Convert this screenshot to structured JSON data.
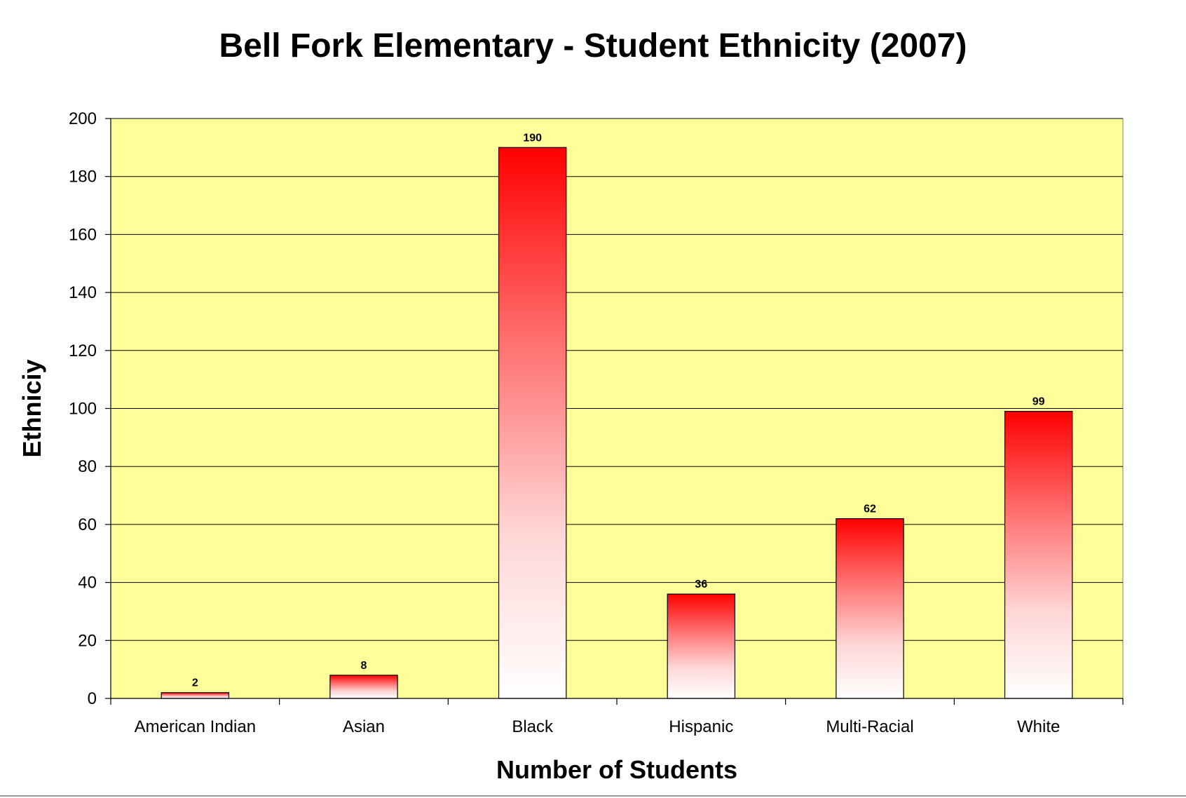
{
  "chart_data": {
    "type": "bar",
    "title": "Bell Fork Elementary - Student Ethnicity (2007)",
    "xlabel": "Number of Students",
    "ylabel": "Ethniciy",
    "categories": [
      "American Indian",
      "Asian",
      "Black",
      "Hispanic",
      "Multi-Racial",
      "White"
    ],
    "values": [
      2,
      8,
      190,
      36,
      62,
      99
    ],
    "ylim": [
      0,
      200
    ],
    "yticks": [
      0,
      20,
      40,
      60,
      80,
      100,
      120,
      140,
      160,
      180,
      200
    ],
    "grid": true,
    "legend": "none",
    "data_labels": true
  },
  "colors": {
    "plot_background": "#FFFF99",
    "bar_top": "#FF0000",
    "bar_bottom": "#FFFFFF",
    "bar_outline": "#000000",
    "gridline": "#000000"
  }
}
